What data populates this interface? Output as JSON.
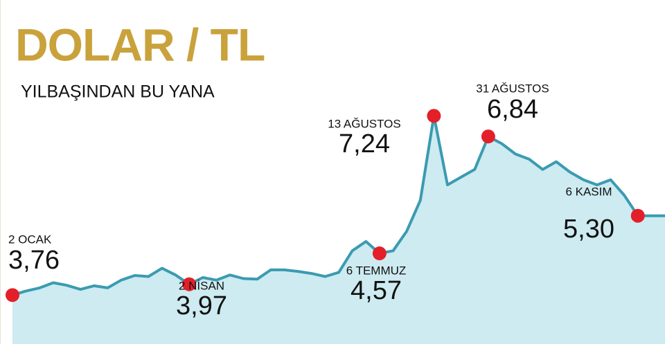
{
  "chart_data": {
    "type": "area",
    "title": "DOLAR / TL",
    "subtitle": "YILBAŞINDAN BU YANA",
    "categories": [
      "2 OCAK",
      null,
      null,
      null,
      null,
      null,
      null,
      null,
      null,
      null,
      null,
      null,
      null,
      "2 NİSAN",
      null,
      null,
      null,
      null,
      null,
      null,
      null,
      null,
      null,
      null,
      null,
      null,
      null,
      "6 TEMMUZ",
      null,
      null,
      null,
      "13 AĞUSTOS",
      null,
      null,
      null,
      "31 AĞUSTOS",
      null,
      null,
      null,
      null,
      null,
      null,
      null,
      null,
      null,
      null,
      "6 KASIM",
      null,
      null
    ],
    "values": [
      3.76,
      3.84,
      3.9,
      4.0,
      3.95,
      3.87,
      3.94,
      3.9,
      4.05,
      4.14,
      4.12,
      4.28,
      4.15,
      3.97,
      4.1,
      4.05,
      4.15,
      4.08,
      4.07,
      4.25,
      4.25,
      4.22,
      4.18,
      4.12,
      4.2,
      4.62,
      4.8,
      4.57,
      4.62,
      5.0,
      5.6,
      7.24,
      5.9,
      6.05,
      6.2,
      6.84,
      6.7,
      6.5,
      6.4,
      6.2,
      6.35,
      6.15,
      6.0,
      5.9,
      6.0,
      5.7,
      5.3,
      5.3,
      5.3
    ],
    "value_labels": [
      "3,76",
      null,
      null,
      null,
      null,
      null,
      null,
      null,
      null,
      null,
      null,
      null,
      null,
      "3,97",
      null,
      null,
      null,
      null,
      null,
      null,
      null,
      null,
      null,
      null,
      null,
      null,
      null,
      "4,57",
      null,
      null,
      null,
      "7,24",
      null,
      null,
      null,
      "6,84",
      null,
      null,
      null,
      null,
      null,
      null,
      null,
      null,
      null,
      null,
      "5,30",
      null,
      null
    ],
    "line_color": "#3b9bb0",
    "area_color": "#cdebf1",
    "marker_color": "#e3202a",
    "ylim": [
      2.81,
      9.49
    ]
  }
}
